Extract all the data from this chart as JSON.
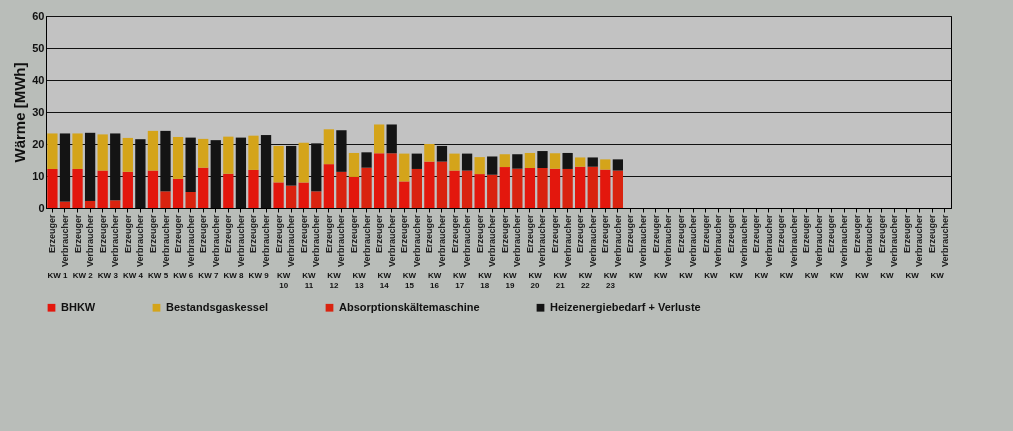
{
  "chart_data": {
    "type": "bar",
    "stacked": true,
    "ylabel": "Wärme [MWh]",
    "ylim": [
      0,
      60
    ],
    "yticks": [
      0,
      10,
      20,
      30,
      40,
      50,
      60
    ],
    "grid": "y",
    "legend": "bottom",
    "categories": [
      "Erzeuger",
      "Verbraucher",
      "Erzeuger",
      "Verbraucher",
      "Erzeuger",
      "Verbraucher",
      "Erzeuger",
      "Verbraucher",
      "Erzeuger",
      "Verbraucher",
      "Erzeuger",
      "Verbraucher",
      "Erzeuger",
      "Verbraucher",
      "Erzeuger",
      "Verbraucher",
      "Erzeuger",
      "Verbraucher",
      "Erzeuger",
      "Verbraucher",
      "Erzeuger",
      "Verbraucher",
      "Erzeuger",
      "Verbraucher",
      "Erzeuger",
      "Verbraucher",
      "Erzeuger",
      "Verbraucher",
      "Erzeuger",
      "Verbraucher",
      "Erzeuger",
      "Verbraucher",
      "Erzeuger",
      "Verbraucher",
      "Erzeuger",
      "Verbraucher",
      "Erzeuger",
      "Verbraucher",
      "Erzeuger",
      "Verbraucher",
      "Erzeuger",
      "Verbraucher",
      "Erzeuger",
      "Verbraucher",
      "Erzeuger",
      "Verbraucher",
      "Erzeuger",
      "Verbraucher",
      "Erzeuger",
      "Verbraucher",
      "Erzeuger",
      "Verbraucher",
      "Erzeuger",
      "Verbraucher",
      "Erzeuger",
      "Verbraucher",
      "Erzeuger",
      "Verbraucher",
      "Erzeuger",
      "Verbraucher",
      "Erzeuger",
      "Verbraucher",
      "Erzeuger",
      "Verbraucher",
      "Erzeuger",
      "Verbraucher",
      "Erzeuger",
      "Verbraucher",
      "Erzeuger",
      "Verbraucher",
      "Erzeuger",
      "Verbraucher"
    ],
    "annotations": [
      "KW 1",
      "KW 2",
      "KW 3",
      "KW 4",
      "KW 5",
      "KW 6",
      "KW 7",
      "KW 8",
      "KW 9",
      "KW 10",
      "KW 11",
      "KW 12",
      "KW 13",
      "KW 14",
      "KW 15",
      "KW 16",
      "KW 17",
      "KW 18",
      "KW 19",
      "KW 20",
      "KW 21",
      "KW 22",
      "KW 23",
      "KW",
      "KW",
      "KW",
      "KW",
      "KW",
      "KW",
      "KW",
      "KW",
      "KW",
      "KW",
      "KW",
      "KW",
      "KW"
    ],
    "series": [
      {
        "name": "BHKW",
        "color": "#e3170d",
        "values": [
          12.2,
          null,
          12.2,
          null,
          11.7,
          null,
          11.3,
          null,
          11.7,
          null,
          9.1,
          null,
          12.6,
          null,
          10.7,
          null,
          11.9,
          null,
          8.0,
          null,
          8.0,
          null,
          13.7,
          null,
          9.7,
          null,
          17.1,
          null,
          8.3,
          null,
          14.5,
          null,
          11.7,
          null,
          10.6,
          null,
          12.8,
          null,
          12.5,
          null,
          12.3,
          null,
          12.9,
          null,
          12.0,
          null,
          null,
          null,
          null,
          null,
          null,
          null,
          null,
          null,
          null,
          null,
          null,
          null,
          null,
          null,
          null,
          null,
          null,
          null,
          null,
          null,
          null,
          null,
          null,
          null,
          null,
          null
        ]
      },
      {
        "name": "Bestandsgaskessel",
        "color": "#d4a41a",
        "values": [
          11.1,
          null,
          11.1,
          null,
          11.3,
          null,
          10.6,
          null,
          12.4,
          null,
          13.1,
          null,
          9.0,
          null,
          11.6,
          null,
          10.7,
          null,
          11.4,
          null,
          12.4,
          null,
          10.9,
          null,
          7.5,
          null,
          9.0,
          null,
          8.7,
          null,
          5.5,
          null,
          5.3,
          null,
          5.3,
          null,
          4.0,
          null,
          4.7,
          null,
          4.8,
          null,
          2.9,
          null,
          3.2,
          null,
          null,
          null,
          null,
          null,
          null,
          null,
          null,
          null,
          null,
          null,
          null,
          null,
          null,
          null,
          null,
          null,
          null,
          null,
          null,
          null,
          null,
          null,
          null,
          null,
          null,
          null
        ]
      },
      {
        "name": "Absorptionskältemaschine",
        "color": "#d9230f",
        "values": [
          null,
          2.0,
          null,
          2.2,
          null,
          2.4,
          null,
          0,
          null,
          5.2,
          null,
          5.0,
          null,
          0,
          null,
          0,
          null,
          0,
          null,
          7.0,
          null,
          5.2,
          null,
          11.3,
          null,
          12.6,
          null,
          17.1,
          null,
          12.2,
          null,
          14.5,
          null,
          11.7,
          null,
          10.4,
          null,
          12.3,
          null,
          12.5,
          null,
          12.2,
          null,
          12.9,
          null,
          11.7,
          null,
          null,
          null,
          null,
          null,
          null,
          null,
          null,
          null,
          null,
          null,
          null,
          null,
          null,
          null,
          null,
          null,
          null,
          null,
          null,
          null,
          null,
          null,
          null,
          null,
          null
        ]
      },
      {
        "name": "Heizenergiebedarf + Verluste",
        "color": "#141414",
        "values": [
          null,
          21.3,
          null,
          21.3,
          null,
          20.9,
          null,
          21.5,
          null,
          18.9,
          null,
          17.0,
          null,
          21.2,
          null,
          22.0,
          null,
          22.8,
          null,
          12.4,
          null,
          15.0,
          null,
          13.0,
          null,
          4.8,
          null,
          9.0,
          null,
          4.8,
          null,
          4.9,
          null,
          5.3,
          null,
          5.7,
          null,
          4.5,
          null,
          5.3,
          null,
          5.0,
          null,
          2.9,
          null,
          3.5,
          null,
          null,
          null,
          null,
          null,
          null,
          null,
          null,
          null,
          null,
          null,
          null,
          null,
          null,
          null,
          null,
          null,
          null,
          null,
          null,
          null,
          null,
          null,
          null,
          null,
          null
        ]
      }
    ]
  }
}
